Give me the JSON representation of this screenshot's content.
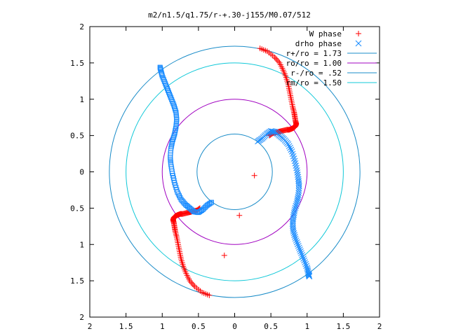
{
  "chart_data": {
    "type": "scatter",
    "title": "m2/n1.5/q1.75/r-+.30-j155/M0.07/512",
    "xlim": [
      -2,
      2
    ],
    "ylim": [
      -2,
      2
    ],
    "x_tick_labels": [
      "2",
      "1.5",
      "1",
      "0.5",
      "0",
      "0.5",
      "1",
      "1.5",
      "2"
    ],
    "y_tick_labels": [
      "2",
      "1.5",
      "1",
      "0.5",
      "0",
      "0.5",
      "1",
      "1.5",
      "2"
    ],
    "x_tick_values": [
      -2,
      -1.5,
      -1,
      -0.5,
      0,
      0.5,
      1,
      1.5,
      2
    ],
    "y_tick_values": [
      2,
      1.5,
      1,
      0.5,
      0,
      -0.5,
      -1,
      -1.5,
      -2
    ],
    "grid": false,
    "legend_position": "top-right",
    "circles": [
      {
        "name": "r+/ro = 1.73",
        "radius": 1.73,
        "color": "#1a8cc8"
      },
      {
        "name": "ro/ro = 1.00",
        "radius": 1.0,
        "color": "#a000c0"
      },
      {
        "name": "r-/ro = .52",
        "radius": 0.52,
        "color": "#1a8cc8"
      },
      {
        "name": "rm/ro = 1.50",
        "radius": 1.5,
        "color": "#10c8d8"
      }
    ],
    "series": [
      {
        "name": "W phase",
        "marker": "plus",
        "color": "#ff0000",
        "x": [
          0.35,
          0.45,
          0.55,
          0.62,
          0.67,
          0.71,
          0.74,
          0.76,
          0.78,
          0.8,
          0.82,
          0.83,
          0.84,
          0.85,
          0.84,
          0.82,
          0.8,
          0.78,
          0.75,
          0.72,
          0.68,
          0.64,
          0.6,
          0.56,
          0.52,
          0.48,
          -0.35,
          -0.45,
          -0.55,
          -0.62,
          -0.67,
          -0.71,
          -0.74,
          -0.76,
          -0.78,
          -0.8,
          -0.82,
          -0.83,
          -0.84,
          -0.85,
          -0.84,
          -0.82,
          -0.8,
          -0.78,
          -0.75,
          -0.72,
          -0.68,
          -0.64,
          -0.6,
          -0.56,
          -0.52,
          -0.48
        ],
        "y": [
          1.7,
          1.66,
          1.58,
          1.5,
          1.4,
          1.3,
          1.2,
          1.1,
          1.0,
          0.9,
          0.82,
          0.76,
          0.7,
          0.66,
          0.63,
          0.61,
          0.6,
          0.59,
          0.58,
          0.58,
          0.57,
          0.56,
          0.55,
          0.54,
          0.53,
          0.5,
          -1.7,
          -1.66,
          -1.58,
          -1.5,
          -1.4,
          -1.3,
          -1.2,
          -1.1,
          -1.0,
          -0.9,
          -0.82,
          -0.76,
          -0.7,
          -0.66,
          -0.63,
          -0.61,
          -0.6,
          -0.59,
          -0.58,
          -0.58,
          -0.57,
          -0.56,
          -0.55,
          -0.54,
          -0.53,
          -0.5
        ]
      },
      {
        "name": "drho phase",
        "marker": "cross",
        "color": "#1a8cff",
        "x": [
          0.32,
          0.38,
          0.44,
          0.5,
          0.56,
          0.62,
          0.68,
          0.74,
          0.79,
          0.83,
          0.86,
          0.88,
          0.89,
          0.88,
          0.86,
          0.83,
          0.81,
          0.8,
          0.81,
          0.84,
          0.88,
          0.92,
          0.96,
          1.0,
          1.02,
          1.03
        ],
        "y": [
          0.42,
          0.46,
          0.52,
          0.56,
          0.55,
          0.5,
          0.45,
          0.38,
          0.28,
          0.15,
          0.02,
          -0.1,
          -0.2,
          -0.32,
          -0.42,
          -0.52,
          -0.62,
          -0.72,
          -0.82,
          -0.92,
          -1.02,
          -1.12,
          -1.22,
          -1.32,
          -1.4,
          -1.44
        ]
      },
      {
        "name": "",
        "marker": "square",
        "color": "#1a8cff",
        "x": [
          -0.32,
          -0.38,
          -0.44,
          -0.5,
          -0.56,
          -0.62,
          -0.68,
          -0.74,
          -0.79,
          -0.83,
          -0.86,
          -0.88,
          -0.89,
          -0.88,
          -0.86,
          -0.83,
          -0.81,
          -0.8,
          -0.81,
          -0.84,
          -0.88,
          -0.92,
          -0.96,
          -1.0,
          -1.02,
          -1.03
        ],
        "y": [
          -0.42,
          -0.46,
          -0.52,
          -0.56,
          -0.55,
          -0.5,
          -0.45,
          -0.38,
          -0.28,
          -0.15,
          -0.02,
          0.1,
          0.2,
          0.32,
          0.42,
          0.52,
          0.62,
          0.72,
          0.82,
          0.92,
          1.02,
          1.12,
          1.22,
          1.32,
          1.4,
          1.44
        ]
      }
    ]
  }
}
